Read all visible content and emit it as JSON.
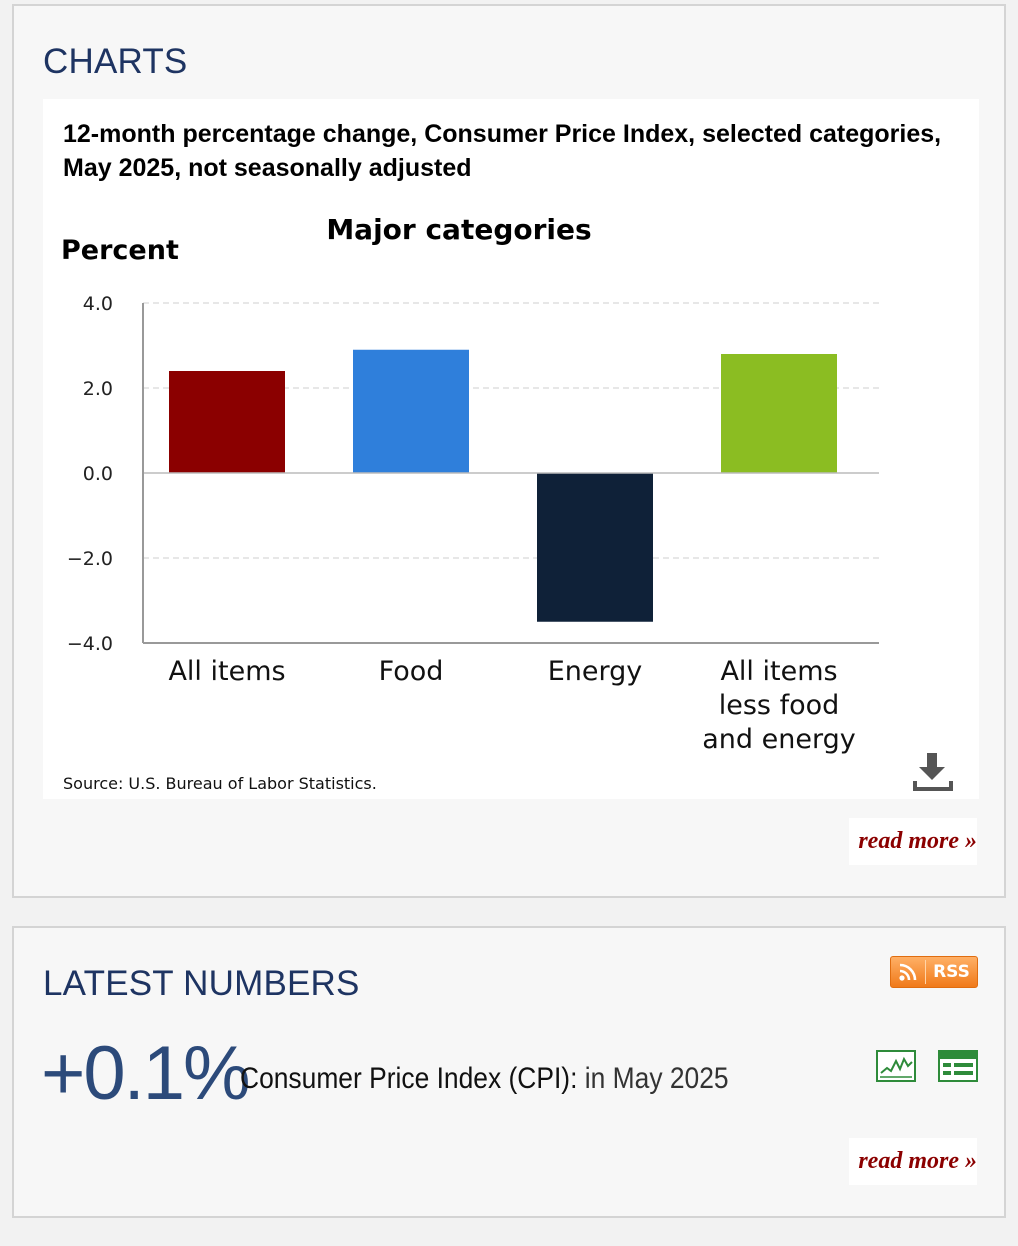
{
  "charts_section": {
    "heading": "CHARTS",
    "chart_title": "12-month percentage change, Consumer Price Index, selected categories, May 2025, not seasonally adjusted",
    "source": "Source: U.S. Bureau of Labor Statistics.",
    "read_more": "read more »",
    "download_icon": "download-icon"
  },
  "chart_data": {
    "type": "bar",
    "title": "Major categories",
    "ylabel": "Percent",
    "xlabel": "",
    "categories": [
      "All items",
      "Food",
      "Energy",
      "All items less food and energy"
    ],
    "category_lines": [
      [
        "All items"
      ],
      [
        "Food"
      ],
      [
        "Energy"
      ],
      [
        "All items",
        "less food",
        "and energy"
      ]
    ],
    "values": [
      2.4,
      2.9,
      -3.5,
      2.8
    ],
    "colors": [
      "#8b0000",
      "#2f7fdb",
      "#0f2138",
      "#8bbd22"
    ],
    "ylim": [
      -4,
      4
    ],
    "yticks": [
      4,
      2,
      0,
      -2,
      -4
    ],
    "ytick_labels": [
      "4.0",
      "2.0",
      "0.0",
      "−2.0",
      "−4.0"
    ],
    "grid": true,
    "legend": "none"
  },
  "latest_section": {
    "heading": "LATEST NUMBERS",
    "rss_label": "RSS",
    "value": "+0.1%",
    "indicator": "Consumer Price Index (CPI):",
    "period": "in May 2025",
    "chart_icon": "line-chart-icon",
    "table_icon": "table-icon",
    "read_more": "read more »",
    "accent_color": "#2c4a7a",
    "link_color": "#8b0000",
    "rss_color": "#f07a1a"
  }
}
